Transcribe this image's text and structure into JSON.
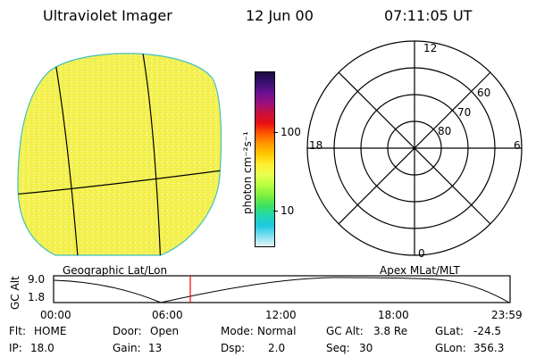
{
  "header": {
    "title": "Ultraviolet Imager",
    "date": "12 Jun 00",
    "time": "07:11:05 UT"
  },
  "colorbar": {
    "label": "photon cm⁻²s⁻¹",
    "ticks": [
      "100",
      "10"
    ],
    "colors": [
      "#1a0a40",
      "#3a1070",
      "#6a1090",
      "#9a1080",
      "#c81040",
      "#e81010",
      "#ff5a00",
      "#ff9a00",
      "#ffc800",
      "#ffee33",
      "#e8ff50",
      "#b8ff40",
      "#80f040",
      "#40e060",
      "#20d8b0",
      "#20c8e0",
      "#80e0f0",
      "#e8f4f8"
    ]
  },
  "geo_image": {
    "fill_color": "#f4f050",
    "edge_color": "#40c0c0"
  },
  "polar_grid": {
    "mlt_labels": [
      "12",
      "18",
      "6",
      "0"
    ],
    "mlat_labels": [
      "60",
      "70",
      "80"
    ]
  },
  "panel_labels": {
    "left": "Geographic Lat/Lon",
    "right": "Apex MLat/MLT"
  },
  "altitude_plot": {
    "ylabel": "GC Alt",
    "yticks": [
      "9.0",
      "1.8"
    ],
    "xticks": [
      "00:00",
      "06:00",
      "12:00",
      "18:00",
      "23:59"
    ],
    "marker_time": "07:11",
    "marker_color": "#ff0000"
  },
  "info": {
    "row1": [
      {
        "label": "Flt:",
        "value": "HOME"
      },
      {
        "label": "Door:",
        "value": "Open"
      },
      {
        "label": "Mode:",
        "value": "Normal"
      },
      {
        "label": "GC Alt:",
        "value": "3.8 Re"
      },
      {
        "label": "GLat:",
        "value": "-24.5"
      }
    ],
    "row2": [
      {
        "label": "IP:",
        "value": "18.0"
      },
      {
        "label": "Gain:",
        "value": "13"
      },
      {
        "label": "Dsp:",
        "value": "2.0"
      },
      {
        "label": "Seq:",
        "value": "30"
      },
      {
        "label": "GLon:",
        "value": "356.3"
      }
    ]
  }
}
